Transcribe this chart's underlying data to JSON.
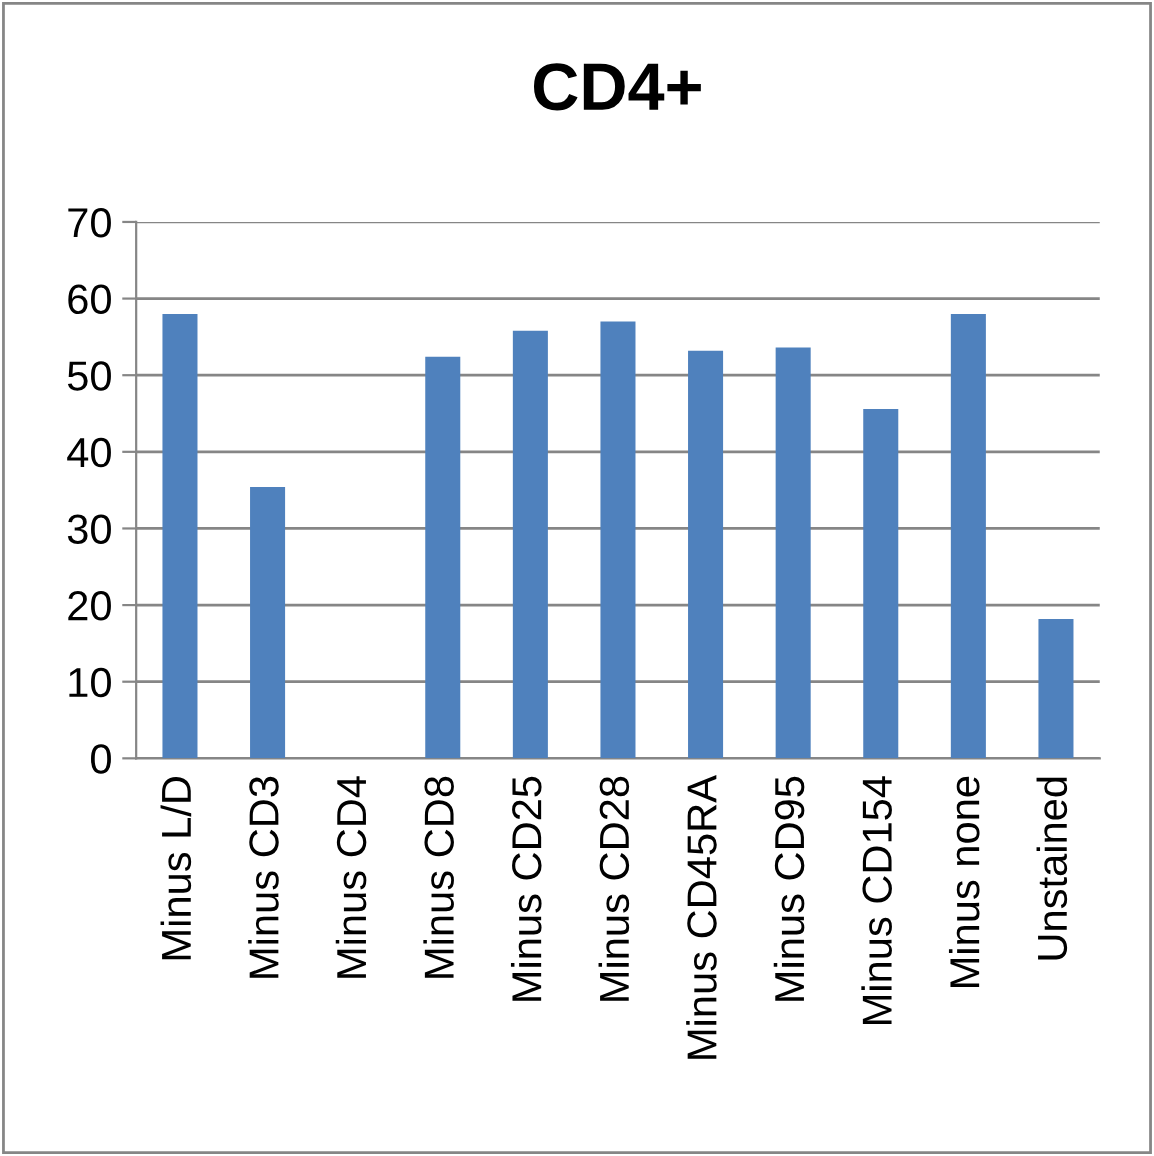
{
  "chart_data": {
    "type": "bar",
    "title": "CD4+",
    "categories": [
      "Minus L/D",
      "Minus CD3",
      "Minus CD4",
      "Minus CD8",
      "Minus CD25",
      "Minus CD28",
      "Minus CD45RA",
      "Minus CD95",
      "Minus CD154",
      "Minus none",
      "Unstained"
    ],
    "values": [
      58.0,
      35.4,
      0,
      52.4,
      55.8,
      57.0,
      53.2,
      53.6,
      45.6,
      58.0,
      18.2
    ],
    "color": "#4f81bd",
    "ylim": [
      0,
      70
    ],
    "yticks": [
      0,
      10,
      20,
      30,
      40,
      50,
      60,
      70
    ],
    "grid": "y",
    "legend": false
  }
}
